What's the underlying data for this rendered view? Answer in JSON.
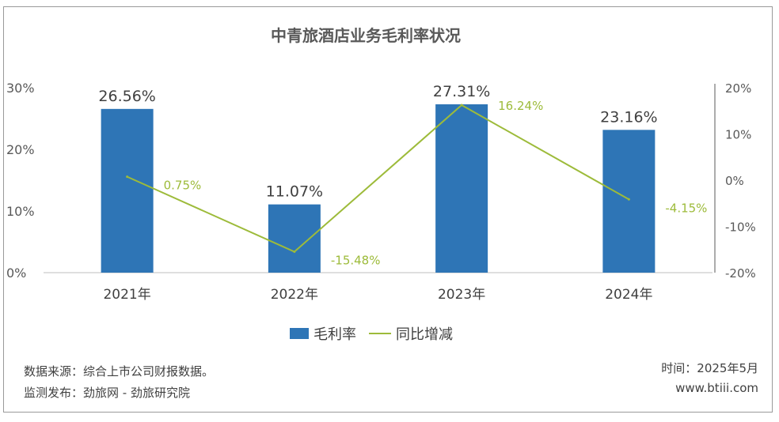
{
  "chart_data": {
    "type": "bar",
    "title": "中青旅酒店业务毛利率状况",
    "categories": [
      "2021年",
      "2022年",
      "2023年",
      "2024年"
    ],
    "series": [
      {
        "name": "毛利率",
        "type": "bar",
        "axis": "left",
        "color": "#2e75b6",
        "values": [
          26.56,
          11.07,
          27.31,
          23.16
        ],
        "labels": [
          "26.56%",
          "11.07%",
          "27.31%",
          "23.16%"
        ]
      },
      {
        "name": "同比增减",
        "type": "line",
        "axis": "right",
        "color": "#9dbb3a",
        "values": [
          0.75,
          -15.48,
          16.24,
          -4.15
        ],
        "labels": [
          "0.75%",
          "-15.48%",
          "16.24%",
          "-4.15%"
        ]
      }
    ],
    "y_left": {
      "ylim": [
        0,
        30
      ],
      "ticks": [
        0,
        10,
        20,
        30
      ],
      "tick_labels": [
        "0%",
        "10%",
        "20%",
        "30%"
      ]
    },
    "y_right": {
      "ylim": [
        -20,
        20
      ],
      "ticks": [
        -20,
        -10,
        0,
        10,
        20
      ],
      "tick_labels": [
        "-20%",
        "-10%",
        "0%",
        "10%",
        "20%"
      ]
    },
    "grid": false,
    "legend": "bottom-center"
  },
  "notes": {
    "source": "数据来源：综合上市公司财报数据。",
    "monitor": "监测发布：劲旅网 - 劲旅研究院",
    "time": "时间：2025年5月",
    "site": "www.btiii.com"
  }
}
